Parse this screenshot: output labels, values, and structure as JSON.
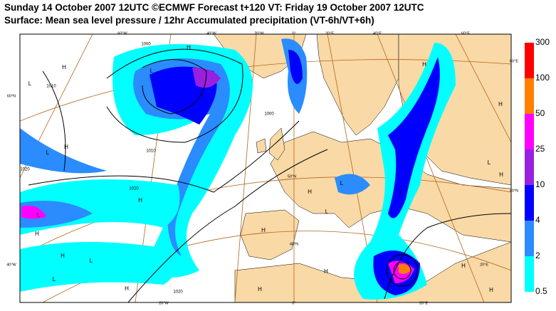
{
  "header": {
    "title": "Sunday 14 October 2007 12UTC ©ECMWF Forecast t+120 VT: Friday 19 October 2007 12UTC",
    "subtitle": "Surface: Mean sea level pressure / 12hr Accumulated precipitation (VT-6h/VT+6h)"
  },
  "colorbar": {
    "levels": [
      "0.5",
      "2",
      "4",
      "10",
      "25",
      "50",
      "100",
      "300"
    ],
    "colors": [
      "#00ffff",
      "#2a8cff",
      "#0000ff",
      "#9a20e0",
      "#ff00ff",
      "#ff8000",
      "#ff0000"
    ]
  },
  "map": {
    "pressure_centres": [
      "H",
      "L",
      "H",
      "L",
      "H",
      "L",
      "H",
      "L",
      "H",
      "H",
      "L",
      "L",
      "H",
      "H",
      "L",
      "H",
      "H",
      "L",
      "H",
      "H",
      "H",
      "H",
      "H",
      "L",
      "L",
      "H"
    ],
    "isobar_labels": [
      "1000",
      "1010",
      "1010",
      "1020",
      "1000",
      "1020",
      "1020"
    ],
    "grid_labels": [
      "60°W",
      "40°W",
      "20°W",
      "0°",
      "20°E",
      "40°E",
      "60°E",
      "60°N",
      "60°E",
      "40°N",
      "40°W",
      "20°W",
      "0°",
      "20°E",
      "50°N",
      "40°N",
      "20°E"
    ]
  }
}
